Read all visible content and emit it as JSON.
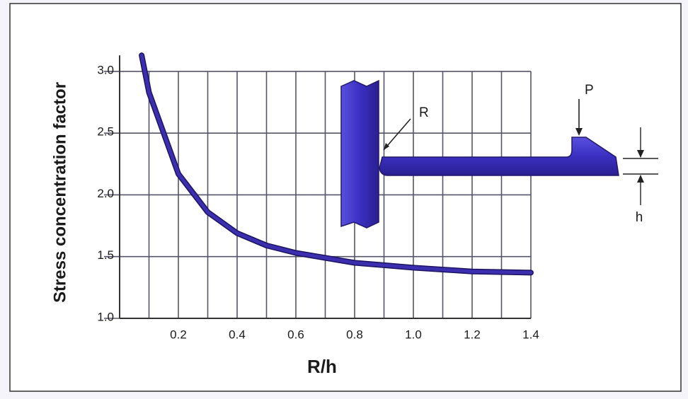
{
  "chart_data": {
    "type": "line",
    "x_label": "R/h",
    "y_label": "Stress concentration factor",
    "x": [
      0.075,
      0.1,
      0.2,
      0.3,
      0.4,
      0.5,
      0.6,
      0.7,
      0.8,
      0.9,
      1.0,
      1.2,
      1.4
    ],
    "values": [
      3.13,
      2.83,
      2.17,
      1.86,
      1.69,
      1.59,
      1.53,
      1.49,
      1.45,
      1.43,
      1.41,
      1.38,
      1.37
    ],
    "color": "#3b2fb0",
    "xlim": [
      0,
      1.4
    ],
    "ylim": [
      1,
      3.2
    ],
    "xticks": [
      0.2,
      0.4,
      0.6,
      0.8,
      {
        "value": 1,
        "label": "1.0"
      },
      1.2,
      1.4
    ],
    "yticks": [
      {
        "value": 1,
        "label": "1.0"
      },
      1.5,
      {
        "value": 2,
        "label": "2.0"
      },
      2.5,
      {
        "value": 3,
        "label": "3.0"
      }
    ],
    "grid": true,
    "annotations": [
      "R",
      "P",
      "h"
    ]
  }
}
